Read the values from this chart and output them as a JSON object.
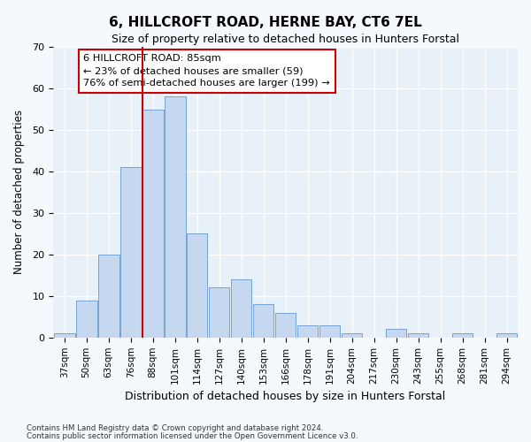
{
  "title": "6, HILLCROFT ROAD, HERNE BAY, CT6 7EL",
  "subtitle": "Size of property relative to detached houses in Hunters Forstal",
  "xlabel": "Distribution of detached houses by size in Hunters Forstal",
  "ylabel": "Number of detached properties",
  "categories": [
    "37sqm",
    "50sqm",
    "63sqm",
    "76sqm",
    "88sqm",
    "101sqm",
    "114sqm",
    "127sqm",
    "140sqm",
    "153sqm",
    "166sqm",
    "178sqm",
    "191sqm",
    "204sqm",
    "217sqm",
    "230sqm",
    "243sqm",
    "255sqm",
    "268sqm",
    "281sqm",
    "294sqm"
  ],
  "values": [
    1,
    9,
    20,
    41,
    55,
    58,
    25,
    12,
    14,
    8,
    6,
    3,
    3,
    1,
    0,
    2,
    1,
    0,
    1,
    0,
    1
  ],
  "bar_color": "#c5d8f0",
  "bar_edge_color": "#6699cc",
  "red_line_index": 4,
  "red_line_color": "#cc0000",
  "annotation_line1": "6 HILLCROFT ROAD: 85sqm",
  "annotation_line2": "← 23% of detached houses are smaller (59)",
  "annotation_line3": "76% of semi-detached houses are larger (199) →",
  "annotation_box_facecolor": "#ffffff",
  "annotation_box_edgecolor": "#cc0000",
  "ylim": [
    0,
    70
  ],
  "yticks": [
    0,
    10,
    20,
    30,
    40,
    50,
    60,
    70
  ],
  "plot_bg": "#e8f0f8",
  "fig_bg": "#f5f8fd",
  "footer_line1": "Contains HM Land Registry data © Crown copyright and database right 2024.",
  "footer_line2": "Contains public sector information licensed under the Open Government Licence v3.0."
}
